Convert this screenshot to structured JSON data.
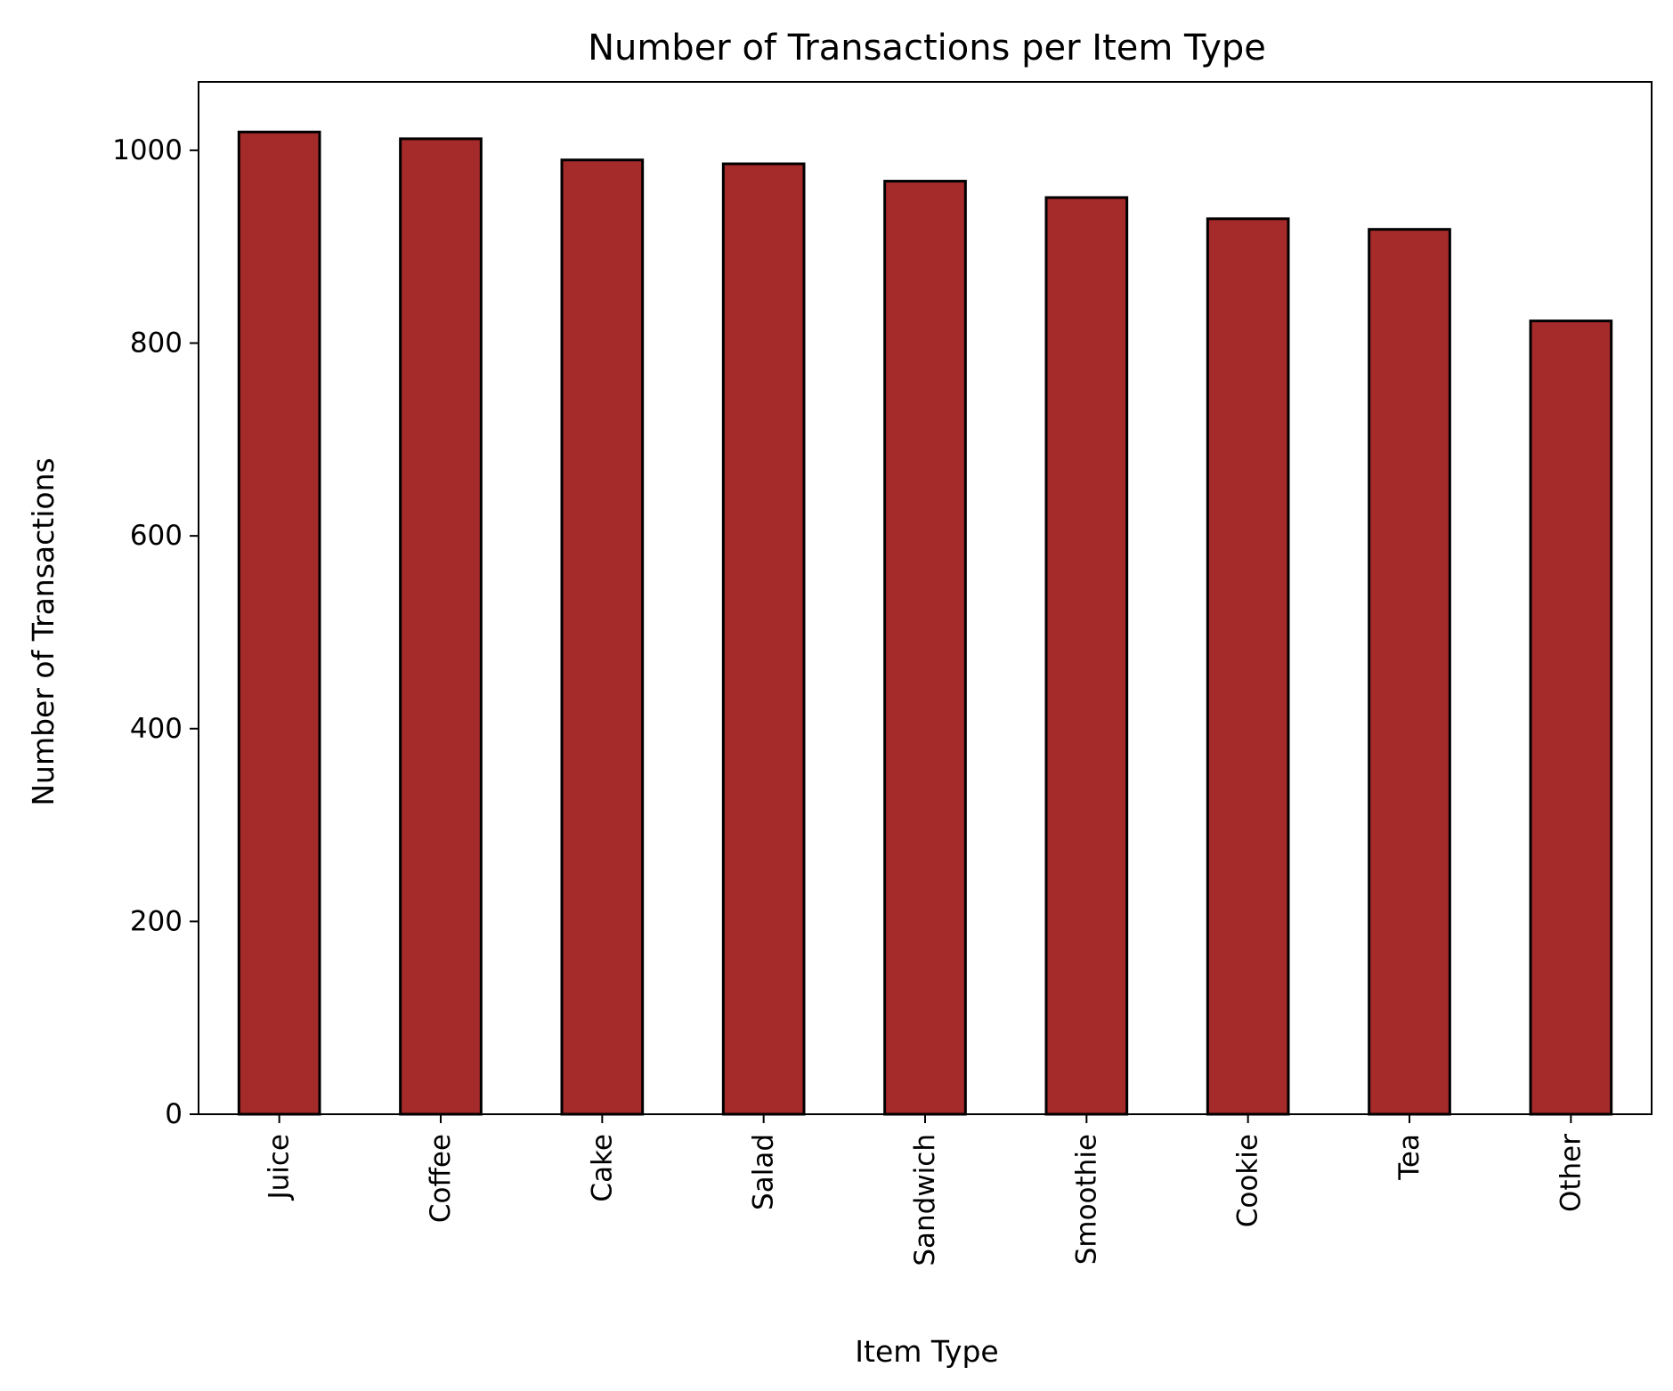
{
  "chart_data": {
    "type": "bar",
    "title": "Number of Transactions per Item Type",
    "xlabel": "Item Type",
    "ylabel": "Number of Transactions",
    "categories": [
      "Juice",
      "Coffee",
      "Cake",
      "Salad",
      "Sandwich",
      "Smoothie",
      "Cookie",
      "Tea",
      "Other"
    ],
    "values": [
      1019,
      1012,
      990,
      986,
      968,
      951,
      929,
      918,
      823
    ],
    "ylim": [
      0,
      1071
    ],
    "yticks": [
      0,
      200,
      400,
      600,
      800,
      1000
    ],
    "grid": false,
    "legend": "none",
    "colors": {
      "bar_fill": "#a52a2a",
      "bar_edge": "#000000",
      "axis": "#000000"
    }
  }
}
